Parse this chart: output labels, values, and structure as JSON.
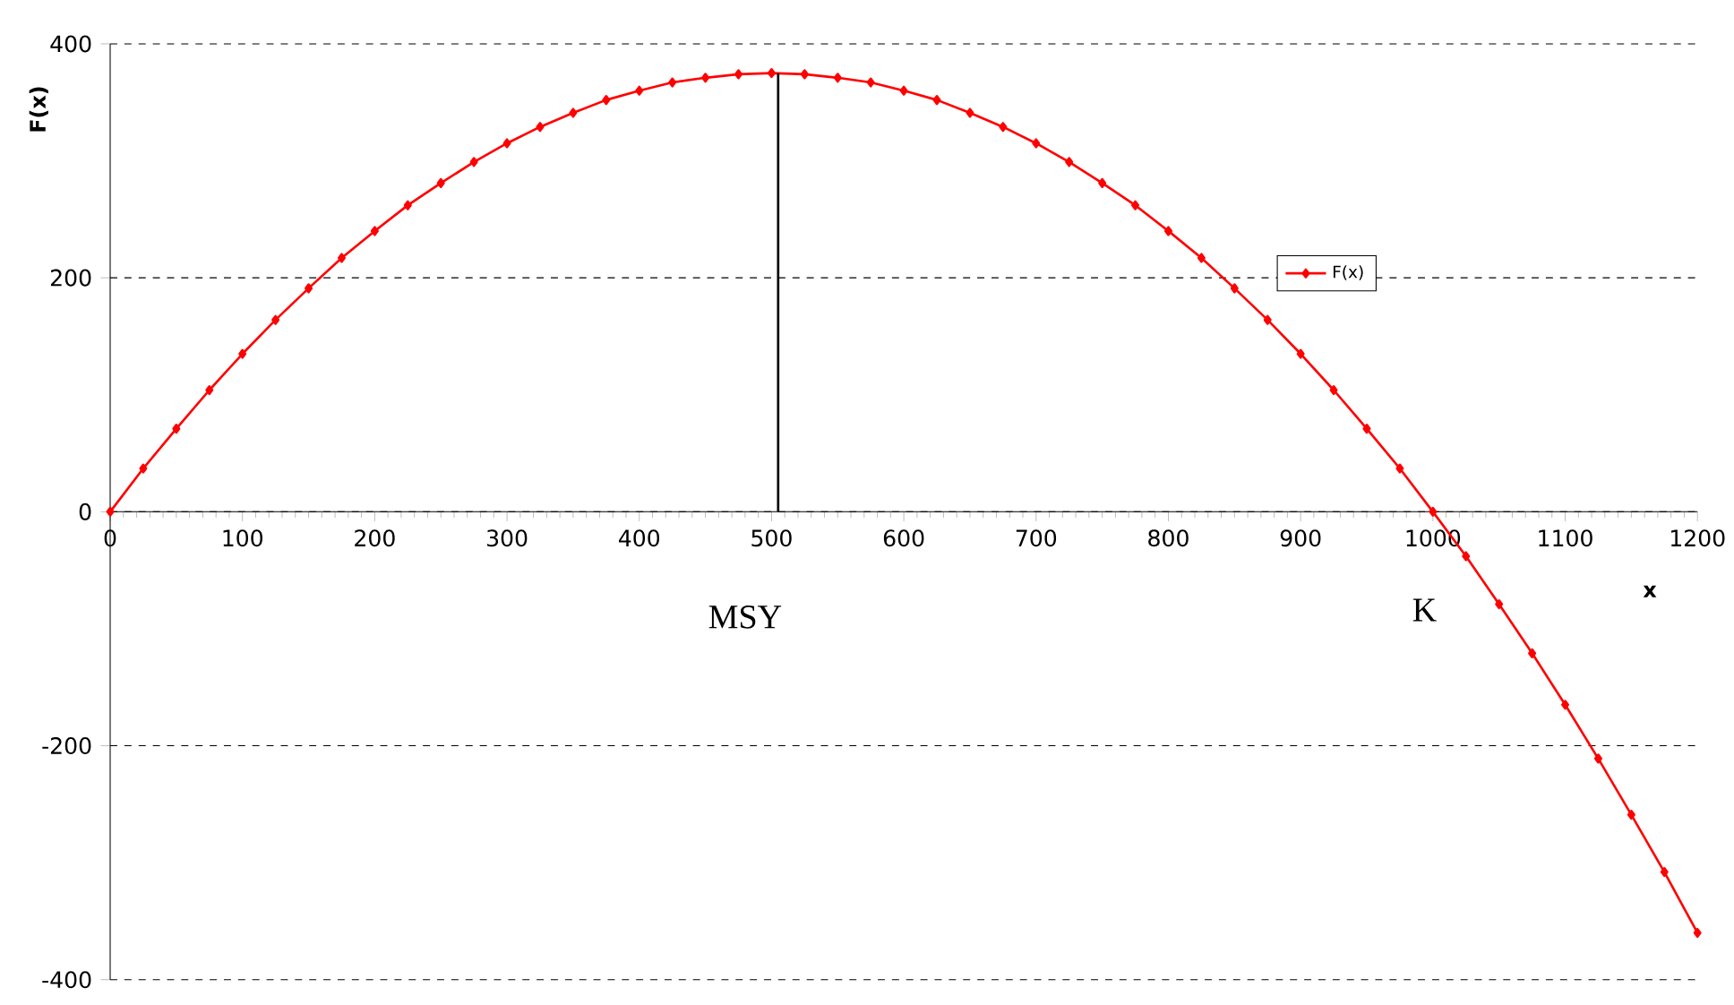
{
  "chart_data": {
    "type": "line",
    "xlabel": "x",
    "ylabel": "F(x)",
    "x": [
      0,
      25,
      50,
      75,
      100,
      125,
      150,
      175,
      200,
      225,
      250,
      275,
      300,
      325,
      350,
      375,
      400,
      425,
      450,
      475,
      500,
      525,
      550,
      575,
      600,
      625,
      650,
      675,
      700,
      725,
      750,
      775,
      800,
      825,
      850,
      875,
      900,
      925,
      950,
      975,
      1000,
      1025,
      1050,
      1075,
      1100,
      1125,
      1150,
      1175,
      1200
    ],
    "series": [
      {
        "name": "F(x)",
        "color": "#ff0000",
        "values": [
          0,
          37,
          71,
          104,
          135,
          164,
          191,
          217,
          240,
          262,
          281,
          299,
          315,
          329,
          341,
          352,
          360,
          367,
          371,
          374,
          375,
          374,
          371,
          367,
          360,
          352,
          341,
          329,
          315,
          299,
          281,
          262,
          240,
          217,
          191,
          164,
          135,
          104,
          71,
          37,
          0,
          -38,
          -79,
          -121,
          -165,
          -211,
          -259,
          -308,
          -360
        ]
      }
    ],
    "xlim": [
      0,
      1200
    ],
    "xticks": [
      0,
      100,
      200,
      300,
      400,
      500,
      600,
      700,
      800,
      900,
      1000,
      1100,
      1200
    ],
    "ylim": [
      -400,
      400
    ],
    "yticks": [
      -400,
      -200,
      0,
      200,
      400
    ],
    "grid": "y",
    "legend": "right",
    "marker": "diamond",
    "line_style": "solid",
    "ref_lines": [
      {
        "axis": "x",
        "value": 505,
        "label": "MSY"
      }
    ],
    "annotations": [
      "K"
    ]
  }
}
